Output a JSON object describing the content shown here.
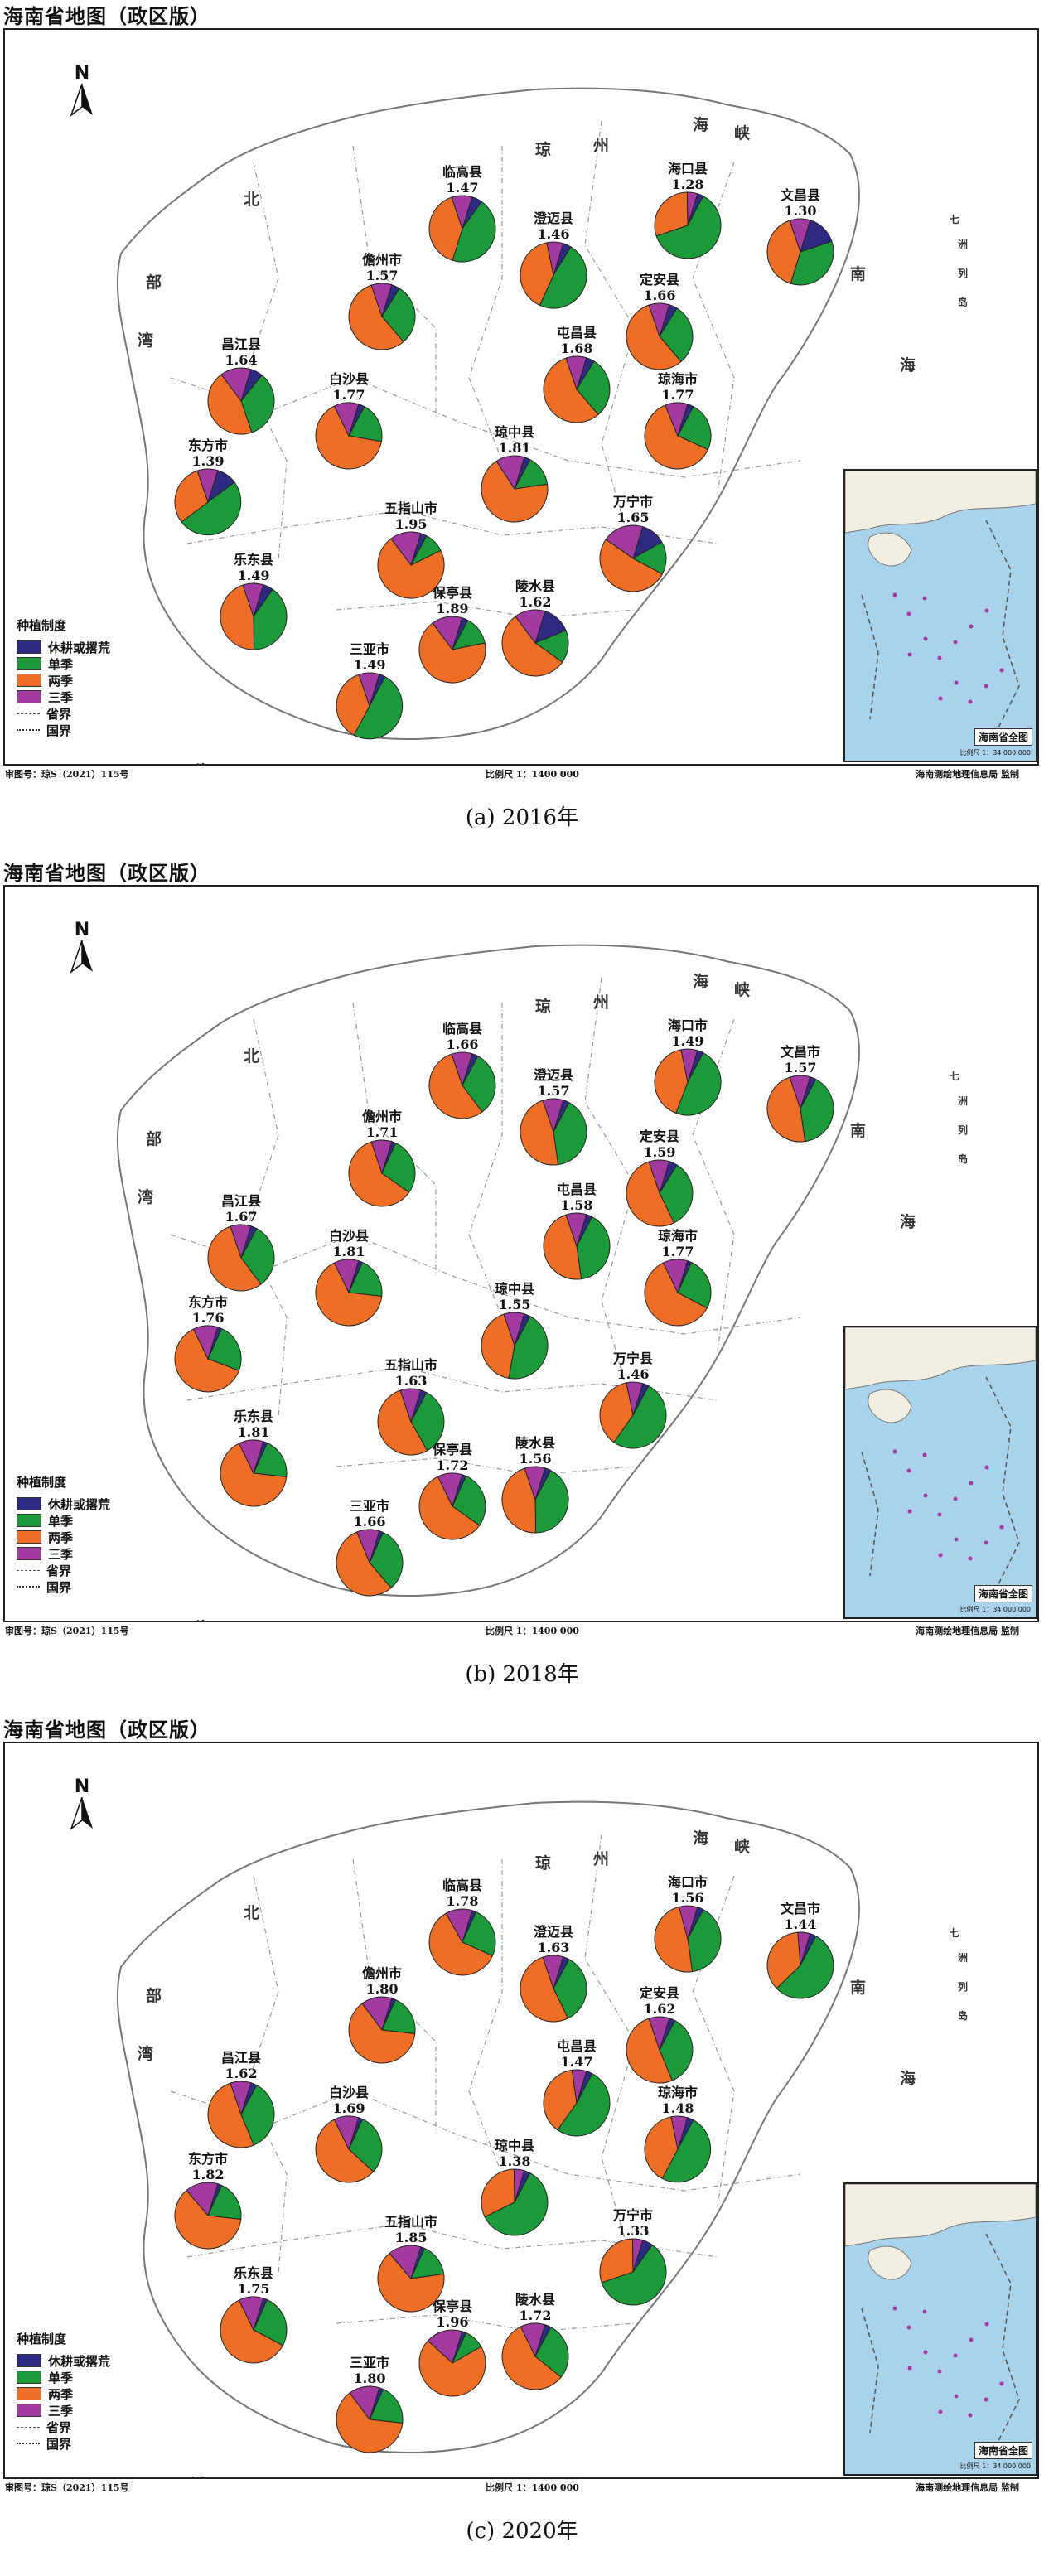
{
  "colors": {
    "fallow": "#2e2a82",
    "single": "#1c9a3a",
    "double": "#ee6e26",
    "triple": "#a33aa0",
    "inset_sea": "#a9d3ec"
  },
  "common": {
    "map_title": "海南省地图（政区版）",
    "review_no": "审图号：琼S（2021）115号",
    "scale": "比例尺 1：1400 000",
    "supervisor": "海南测绘地理信息局  监制",
    "north": "N",
    "legend_title": "种植制度",
    "legend_items": [
      "休耕或撂荒",
      "单季",
      "两季",
      "三季"
    ],
    "legend_lines": [
      "省界",
      "国界"
    ],
    "inset_title": "海南省全图",
    "inset_scale": "比例尺 1：34 000 000",
    "seas": [
      "北",
      "部",
      "湾",
      "琼",
      "州",
      "海",
      "峡",
      "南",
      "海",
      "南",
      "南",
      "海",
      "南",
      "七",
      "洲",
      "列",
      "岛"
    ]
  },
  "panels": [
    {
      "caption": "(a) 2016年",
      "counties": [
        {
          "name": "临高县",
          "value": "1.47",
          "shares": [
            0.05,
            0.45,
            0.4,
            0.1
          ]
        },
        {
          "name": "澄迈县",
          "value": "1.46",
          "shares": [
            0.04,
            0.48,
            0.4,
            0.08
          ]
        },
        {
          "name": "海口县",
          "value": "1.28",
          "shares": [
            0.03,
            0.62,
            0.3,
            0.05
          ]
        },
        {
          "name": "文昌县",
          "value": "1.30",
          "shares": [
            0.15,
            0.35,
            0.4,
            0.1
          ]
        },
        {
          "name": "儋州市",
          "value": "1.57",
          "shares": [
            0.04,
            0.3,
            0.56,
            0.1
          ]
        },
        {
          "name": "定安县",
          "value": "1.66",
          "shares": [
            0.04,
            0.3,
            0.56,
            0.1
          ]
        },
        {
          "name": "昌江县",
          "value": "1.64",
          "shares": [
            0.06,
            0.34,
            0.45,
            0.15
          ]
        },
        {
          "name": "白沙县",
          "value": "1.77",
          "shares": [
            0.03,
            0.2,
            0.65,
            0.12
          ]
        },
        {
          "name": "琼中县",
          "value": "1.81",
          "shares": [
            0.03,
            0.15,
            0.68,
            0.14
          ]
        },
        {
          "name": "屯昌县",
          "value": "1.68",
          "shares": [
            0.04,
            0.3,
            0.56,
            0.1
          ]
        },
        {
          "name": "琼海市",
          "value": "1.77",
          "shares": [
            0.03,
            0.24,
            0.62,
            0.11
          ]
        },
        {
          "name": "东方市",
          "value": "1.39",
          "shares": [
            0.1,
            0.5,
            0.3,
            0.1
          ]
        },
        {
          "name": "五指山市",
          "value": "1.95",
          "shares": [
            0.03,
            0.1,
            0.72,
            0.15
          ]
        },
        {
          "name": "万宁市",
          "value": "1.65",
          "shares": [
            0.12,
            0.16,
            0.52,
            0.2
          ]
        },
        {
          "name": "乐东县",
          "value": "1.49",
          "shares": [
            0.05,
            0.4,
            0.45,
            0.1
          ]
        },
        {
          "name": "陵水县",
          "value": "1.62",
          "shares": [
            0.14,
            0.16,
            0.55,
            0.15
          ]
        },
        {
          "name": "保亭县",
          "value": "1.89",
          "shares": [
            0.03,
            0.14,
            0.68,
            0.15
          ]
        },
        {
          "name": "三亚市",
          "value": "1.49",
          "shares": [
            0.03,
            0.5,
            0.37,
            0.1
          ]
        }
      ]
    },
    {
      "caption": "(b) 2018年",
      "counties": [
        {
          "name": "临高县",
          "value": "1.66",
          "shares": [
            0.03,
            0.32,
            0.55,
            0.1
          ]
        },
        {
          "name": "澄迈县",
          "value": "1.57",
          "shares": [
            0.03,
            0.4,
            0.47,
            0.1
          ]
        },
        {
          "name": "海口市",
          "value": "1.49",
          "shares": [
            0.03,
            0.48,
            0.41,
            0.08
          ]
        },
        {
          "name": "文昌市",
          "value": "1.57",
          "shares": [
            0.03,
            0.4,
            0.47,
            0.1
          ]
        },
        {
          "name": "儋州市",
          "value": "1.71",
          "shares": [
            0.02,
            0.28,
            0.6,
            0.1
          ]
        },
        {
          "name": "定安县",
          "value": "1.59",
          "shares": [
            0.04,
            0.34,
            0.52,
            0.1
          ]
        },
        {
          "name": "昌江县",
          "value": "1.67",
          "shares": [
            0.03,
            0.32,
            0.55,
            0.1
          ]
        },
        {
          "name": "白沙县",
          "value": "1.81",
          "shares": [
            0.02,
            0.2,
            0.66,
            0.12
          ]
        },
        {
          "name": "琼中县",
          "value": "1.55",
          "shares": [
            0.03,
            0.45,
            0.42,
            0.1
          ]
        },
        {
          "name": "屯昌县",
          "value": "1.58",
          "shares": [
            0.03,
            0.4,
            0.47,
            0.1
          ]
        },
        {
          "name": "琼海市",
          "value": "1.77",
          "shares": [
            0.02,
            0.26,
            0.6,
            0.12
          ]
        },
        {
          "name": "东方市",
          "value": "1.76",
          "shares": [
            0.02,
            0.24,
            0.62,
            0.12
          ]
        },
        {
          "name": "五指山市",
          "value": "1.63",
          "shares": [
            0.03,
            0.34,
            0.53,
            0.1
          ]
        },
        {
          "name": "万宁县",
          "value": "1.46",
          "shares": [
            0.03,
            0.52,
            0.37,
            0.08
          ]
        },
        {
          "name": "乐东县",
          "value": "1.81",
          "shares": [
            0.02,
            0.2,
            0.66,
            0.12
          ]
        },
        {
          "name": "陵水县",
          "value": "1.56",
          "shares": [
            0.03,
            0.42,
            0.45,
            0.1
          ]
        },
        {
          "name": "保亭县",
          "value": "1.72",
          "shares": [
            0.02,
            0.28,
            0.58,
            0.12
          ]
        },
        {
          "name": "三亚市",
          "value": "1.66",
          "shares": [
            0.02,
            0.32,
            0.55,
            0.11
          ]
        }
      ]
    },
    {
      "caption": "(c) 2020年",
      "counties": [
        {
          "name": "临高县",
          "value": "1.78",
          "shares": [
            0.02,
            0.25,
            0.6,
            0.13
          ]
        },
        {
          "name": "澄迈县",
          "value": "1.63",
          "shares": [
            0.03,
            0.35,
            0.52,
            0.1
          ]
        },
        {
          "name": "海口市",
          "value": "1.56",
          "shares": [
            0.03,
            0.4,
            0.48,
            0.09
          ]
        },
        {
          "name": "文昌市",
          "value": "1.44",
          "shares": [
            0.03,
            0.55,
            0.36,
            0.06
          ]
        },
        {
          "name": "儋州市",
          "value": "1.80",
          "shares": [
            0.02,
            0.2,
            0.63,
            0.15
          ]
        },
        {
          "name": "定安县",
          "value": "1.62",
          "shares": [
            0.03,
            0.36,
            0.51,
            0.1
          ]
        },
        {
          "name": "昌江县",
          "value": "1.62",
          "shares": [
            0.03,
            0.36,
            0.51,
            0.1
          ]
        },
        {
          "name": "白沙县",
          "value": "1.69",
          "shares": [
            0.02,
            0.3,
            0.56,
            0.12
          ]
        },
        {
          "name": "琼中县",
          "value": "1.38",
          "shares": [
            0.03,
            0.6,
            0.32,
            0.05
          ]
        },
        {
          "name": "屯昌县",
          "value": "1.47",
          "shares": [
            0.03,
            0.52,
            0.38,
            0.07
          ]
        },
        {
          "name": "琼海市",
          "value": "1.48",
          "shares": [
            0.03,
            0.5,
            0.39,
            0.08
          ]
        },
        {
          "name": "东方市",
          "value": "1.82",
          "shares": [
            0.02,
            0.2,
            0.62,
            0.16
          ]
        },
        {
          "name": "五指山市",
          "value": "1.85",
          "shares": [
            0.02,
            0.16,
            0.66,
            0.16
          ]
        },
        {
          "name": "万宁市",
          "value": "1.33",
          "shares": [
            0.05,
            0.6,
            0.3,
            0.05
          ]
        },
        {
          "name": "乐东县",
          "value": "1.75",
          "shares": [
            0.02,
            0.26,
            0.6,
            0.12
          ]
        },
        {
          "name": "陵水县",
          "value": "1.72",
          "shares": [
            0.03,
            0.28,
            0.57,
            0.12
          ]
        },
        {
          "name": "保亭县",
          "value": "1.96",
          "shares": [
            0.02,
            0.1,
            0.7,
            0.18
          ]
        },
        {
          "name": "三亚市",
          "value": "1.80",
          "shares": [
            0.02,
            0.2,
            0.63,
            0.15
          ]
        }
      ]
    }
  ]
}
